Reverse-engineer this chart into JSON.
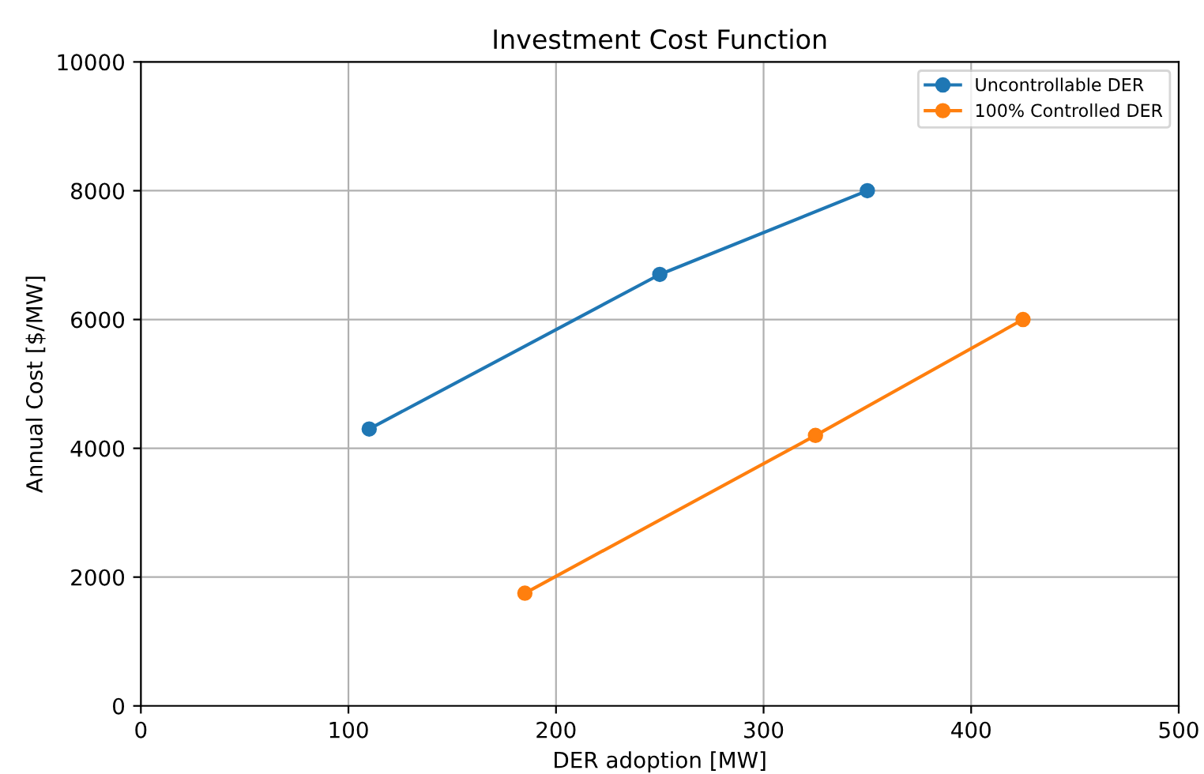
{
  "chart_data": {
    "type": "line",
    "title": "Investment Cost Function",
    "xlabel": "DER adoption [MW]",
    "ylabel": "Annual Cost [$/MW]",
    "series": [
      {
        "name": "Uncontrollable DER",
        "color": "#1f77b4",
        "x": [
          110,
          250,
          350
        ],
        "values": [
          4300,
          6700,
          8000
        ]
      },
      {
        "name": "100% Controlled DER",
        "color": "#ff7f0e",
        "x": [
          185,
          325,
          425
        ],
        "values": [
          1750,
          4200,
          6000
        ]
      }
    ],
    "xlim": [
      0,
      500
    ],
    "xticks": [
      0,
      100,
      200,
      300,
      400,
      500
    ],
    "ylim": [
      0,
      10000
    ],
    "yticks": [
      0,
      2000,
      4000,
      6000,
      8000,
      10000
    ],
    "grid": true,
    "legend": "top right",
    "marker": "circle",
    "line_style": "solid"
  }
}
